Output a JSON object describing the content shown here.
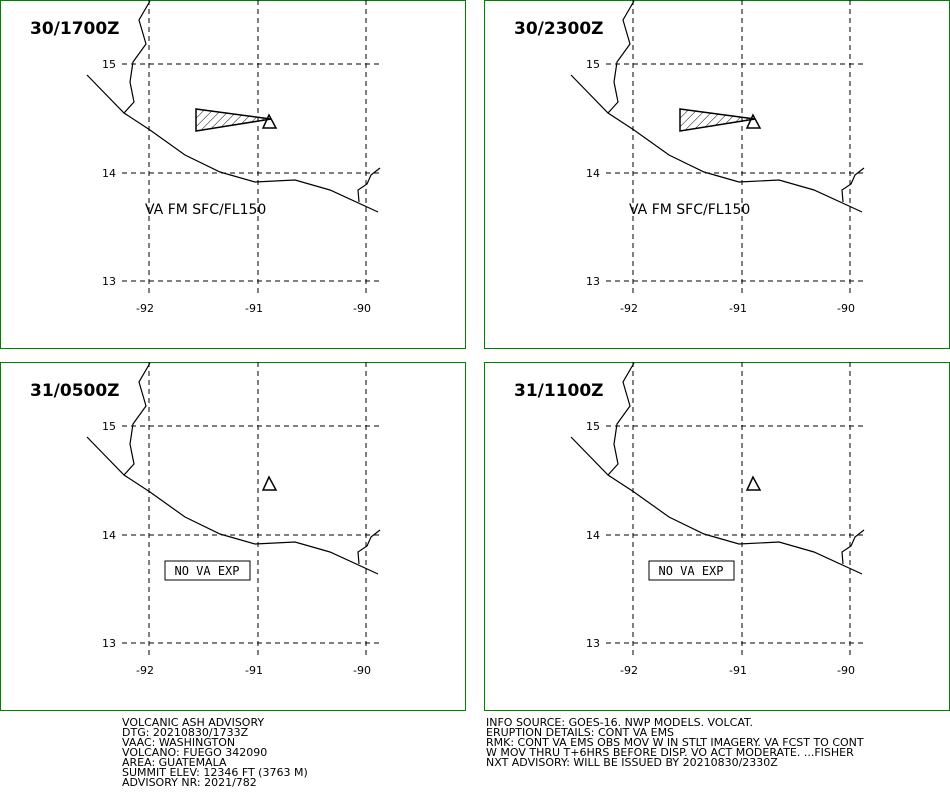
{
  "panels": [
    {
      "time": "30/1700Z",
      "lat_labels": [
        "15",
        "14",
        "13"
      ],
      "lon_labels": [
        "-92",
        "-91",
        "-90"
      ],
      "annotation": "VA FM SFC/FL150"
    },
    {
      "time": "30/2300Z",
      "lat_labels": [
        "15",
        "14",
        "13"
      ],
      "lon_labels": [
        "-92",
        "-91",
        "-90"
      ],
      "annotation": "VA FM SFC/FL150"
    },
    {
      "time": "31/0500Z",
      "lat_labels": [
        "15",
        "14",
        "13"
      ],
      "lon_labels": [
        "-92",
        "-91",
        "-90"
      ],
      "annotation": "NO VA EXP"
    },
    {
      "time": "31/1100Z",
      "lat_labels": [
        "15",
        "14",
        "13"
      ],
      "lon_labels": [
        "-92",
        "-91",
        "-90"
      ],
      "annotation": "NO VA EXP"
    }
  ],
  "advisory_left": [
    "VOLCANIC ASH ADVISORY",
    "DTG: 20210830/1733Z",
    "VAAC: WASHINGTON",
    "VOLCANO: FUEGO 342090",
    "AREA: GUATEMALA",
    "SUMMIT ELEV: 12346 FT (3763 M)",
    "ADVISORY NR: 2021/782"
  ],
  "advisory_right": [
    "INFO SOURCE: GOES-16. NWP MODELS. VOLCAT.",
    "ERUPTION DETAILS: CONT VA EMS",
    "RMK: CONT VA EMS OBS MOV W IN STLT IMAGERY. VA FCST TO CONT",
    "W MOV THRU T+6HRS BEFORE DISP. VO ACT MODERATE. ...FISHER",
    "NXT ADVISORY: WILL BE ISSUED BY 20210830/2330Z"
  ]
}
